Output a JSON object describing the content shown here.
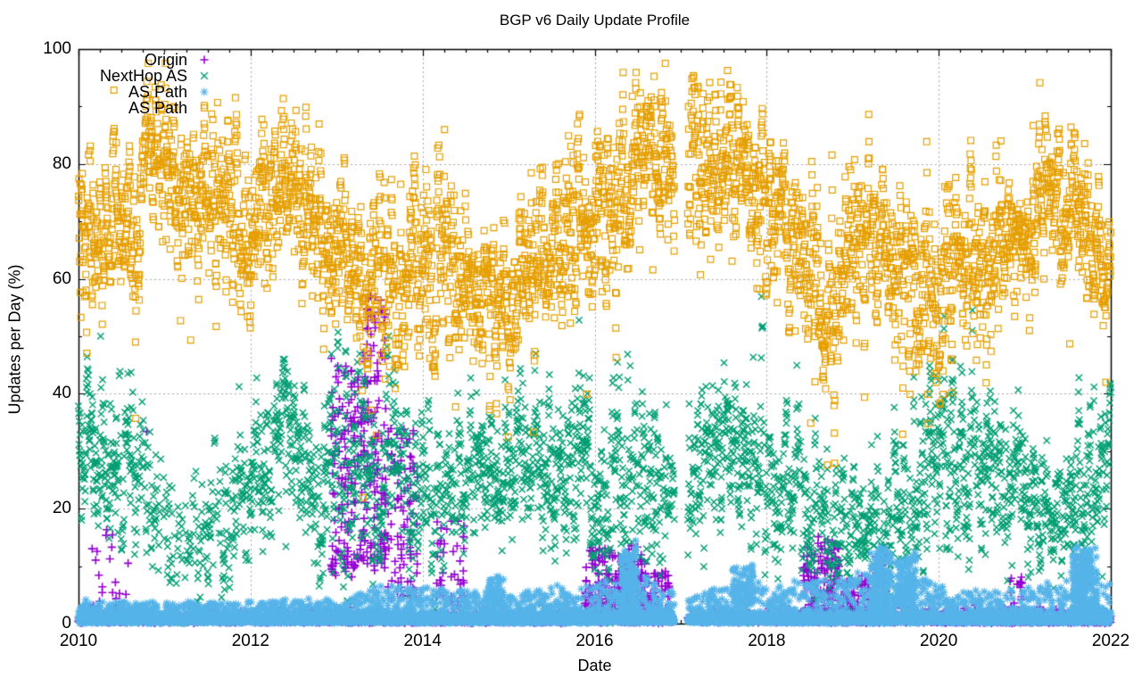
{
  "title": "BGP v6 Daily Update Profile",
  "axes": {
    "x": {
      "label": "Date",
      "min": 2010,
      "max": 2022,
      "ticks": [
        2010,
        2012,
        2014,
        2016,
        2018,
        2020,
        2022
      ],
      "minor_interval": 0.25,
      "grid_at": [
        2012,
        2014,
        2016,
        2018,
        2020
      ]
    },
    "y": {
      "label": "Updates per Day (%)",
      "min": 0,
      "max": 100,
      "ticks": [
        0,
        20,
        40,
        60,
        80,
        100
      ],
      "minor_interval": 10,
      "grid_at": [
        20,
        40,
        60,
        80
      ]
    }
  },
  "legend": {
    "entries": [
      {
        "label": "Origin",
        "marker": "plus",
        "color": "#9400d3"
      },
      {
        "label": "NextHop AS",
        "marker": "cross",
        "color": "#009e73"
      },
      {
        "label": "AS Path",
        "marker": "asterisk",
        "color": "#56b4e9"
      },
      {
        "label": "AS Path",
        "marker": "square",
        "color": "#e69f00"
      }
    ]
  },
  "colors": {
    "grid": "#a8a8a8",
    "border": "#000000",
    "background": "#ffffff"
  },
  "chart_data": {
    "type": "scatter",
    "x_unit": "year",
    "xlim": [
      2010,
      2022
    ],
    "ylim": [
      0,
      100
    ],
    "seed": 1337,
    "gaps": [
      [
        2016.93,
        2017.08
      ]
    ],
    "series": [
      {
        "name": "Origin",
        "marker": "plus",
        "color": "#9400d3",
        "size": 4.6,
        "gen": "floor",
        "floor_keyframes": [
          [
            2010,
            2.0,
            0.5
          ],
          [
            2010.6,
            1.8,
            0.35
          ],
          [
            2012.8,
            1.8,
            0.4
          ],
          [
            2013.8,
            2.0,
            0.5
          ],
          [
            2014.6,
            1.6,
            0.4
          ],
          [
            2015.8,
            1.8,
            0.55
          ],
          [
            2016.9,
            1.6,
            0.45
          ],
          [
            2017.8,
            1.4,
            0.4
          ],
          [
            2018.4,
            1.8,
            0.6
          ],
          [
            2019.5,
            1.6,
            0.6
          ],
          [
            2020.6,
            1.8,
            0.85
          ],
          [
            2020.9,
            2.0,
            1.3
          ],
          [
            2022,
            2.0,
            1.3
          ]
        ],
        "samples": 1,
        "tail_p": 0.05,
        "tail_pow": 2.0,
        "bursts": [
          [
            2010.15,
            2010.6,
            3,
            17,
            22
          ],
          [
            2010.78,
            2010.8,
            33,
            35,
            1
          ],
          [
            2012.93,
            2013.3,
            8,
            46,
            150
          ],
          [
            2013.3,
            2013.58,
            10,
            57,
            150
          ],
          [
            2013.58,
            2013.95,
            4,
            34,
            100
          ],
          [
            2014.15,
            2014.5,
            3,
            18,
            45
          ],
          [
            2015.88,
            2016.6,
            2,
            13,
            210
          ],
          [
            2016.6,
            2016.88,
            1,
            9,
            70
          ],
          [
            2018.42,
            2018.85,
            2,
            14,
            150
          ],
          [
            2018.88,
            2019.2,
            1,
            8,
            80
          ],
          [
            2019.25,
            2019.4,
            1,
            12,
            35
          ],
          [
            2020.82,
            2020.98,
            3,
            9,
            15
          ]
        ]
      },
      {
        "name": "NextHop AS",
        "marker": "cross",
        "color": "#009e73",
        "size": 4.4,
        "gen": "band",
        "band_keyframes": [
          [
            2010,
            35,
            8,
            0.9
          ],
          [
            2010.45,
            32,
            8,
            0.85
          ],
          [
            2010.8,
            24,
            9,
            0.6
          ],
          [
            2011.05,
            15,
            8,
            0.45
          ],
          [
            2011.4,
            14,
            8,
            0.45
          ],
          [
            2011.7,
            20,
            9,
            0.6
          ],
          [
            2012,
            28,
            8,
            0.8
          ],
          [
            2012.4,
            31,
            8,
            0.85
          ],
          [
            2012.8,
            27,
            9,
            0.8
          ],
          [
            2013.1,
            25,
            11,
            0.85
          ],
          [
            2013.5,
            24,
            10,
            0.8
          ],
          [
            2013.9,
            20,
            9,
            0.75
          ],
          [
            2014.3,
            24,
            8,
            0.8
          ],
          [
            2014.8,
            25,
            7,
            0.85
          ],
          [
            2015.3,
            27,
            8,
            0.85
          ],
          [
            2015.8,
            28,
            9,
            0.85
          ],
          [
            2016.2,
            22,
            10,
            0.8
          ],
          [
            2016.6,
            24,
            9,
            0.8
          ],
          [
            2017,
            24,
            8,
            0.8
          ],
          [
            2017.5,
            30,
            8,
            0.9
          ],
          [
            2017.9,
            28,
            8,
            0.85
          ],
          [
            2018.3,
            22,
            8,
            0.8
          ],
          [
            2018.7,
            18,
            7,
            0.75
          ],
          [
            2019.1,
            14,
            6,
            0.7
          ],
          [
            2019.5,
            20,
            8,
            0.8
          ],
          [
            2019.9,
            28,
            10,
            0.9
          ],
          [
            2020.3,
            30,
            9,
            0.9
          ],
          [
            2020.7,
            28,
            8,
            0.85
          ],
          [
            2021.1,
            20,
            7,
            0.8
          ],
          [
            2021.5,
            20,
            6,
            0.8
          ],
          [
            2021.8,
            25,
            7,
            0.8
          ],
          [
            2021.95,
            26,
            6,
            0.8
          ],
          [
            2022,
            41,
            3,
            0.9
          ]
        ],
        "outlier_low": {
          "p": 0.012,
          "dmax": 18
        }
      },
      {
        "name": "AS Path",
        "marker": "asterisk",
        "color": "#56b4e9",
        "size": 4.4,
        "gen": "floor",
        "floor_keyframes": [
          [
            2010,
            3.5,
            1
          ],
          [
            2012,
            3.5,
            1
          ],
          [
            2013,
            4,
            1
          ],
          [
            2013.6,
            7,
            1
          ],
          [
            2014.2,
            6,
            1
          ],
          [
            2015,
            5,
            1
          ],
          [
            2016,
            7,
            1
          ],
          [
            2016.5,
            9,
            1
          ],
          [
            2017,
            4.5,
            1
          ],
          [
            2017.8,
            7,
            1
          ],
          [
            2018.5,
            7,
            1
          ],
          [
            2019.2,
            9,
            1
          ],
          [
            2019.7,
            9,
            1
          ],
          [
            2020.2,
            5,
            1
          ],
          [
            2021,
            6,
            1
          ],
          [
            2021.7,
            9,
            1
          ],
          [
            2022,
            7,
            1
          ]
        ],
        "samples": 2,
        "tail_p": 0.55,
        "tail_pow": 1.7,
        "bursts": [
          [
            2014.75,
            2014.95,
            3,
            8,
            60
          ],
          [
            2016.3,
            2016.5,
            1,
            13,
            160
          ],
          [
            2017.6,
            2017.85,
            4,
            10,
            80
          ],
          [
            2019.2,
            2019.45,
            1,
            13,
            160
          ],
          [
            2019.5,
            2019.75,
            3,
            12,
            120
          ],
          [
            2021.55,
            2021.85,
            2,
            13,
            200
          ]
        ]
      },
      {
        "name": "AS Path",
        "marker": "square",
        "color": "#e69f00",
        "size": 3.4,
        "gen": "band",
        "band_keyframes": [
          [
            2010,
            65,
            8,
            1
          ],
          [
            2010.5,
            69,
            9,
            1
          ],
          [
            2010.85,
            82,
            8,
            1
          ],
          [
            2011.1,
            81,
            8,
            1
          ],
          [
            2011.35,
            77,
            8,
            1
          ],
          [
            2011.6,
            73,
            9,
            1
          ],
          [
            2011.9,
            68,
            9,
            1
          ],
          [
            2012.1,
            70,
            8,
            1
          ],
          [
            2012.35,
            77,
            8,
            1
          ],
          [
            2012.6,
            74,
            9,
            1
          ],
          [
            2012.9,
            69,
            9,
            1
          ],
          [
            2013.15,
            61,
            8,
            1
          ],
          [
            2013.5,
            59,
            9,
            1
          ],
          [
            2013.8,
            62,
            9,
            1
          ],
          [
            2014.05,
            64,
            10,
            1
          ],
          [
            2014.35,
            62,
            10,
            1
          ],
          [
            2014.65,
            57,
            7,
            1
          ],
          [
            2014.95,
            54,
            6,
            1
          ],
          [
            2015.2,
            61,
            7,
            1
          ],
          [
            2015.5,
            66,
            8,
            1
          ],
          [
            2015.8,
            70,
            8,
            1
          ],
          [
            2016.1,
            72,
            8,
            1
          ],
          [
            2016.4,
            78,
            9,
            1
          ],
          [
            2016.65,
            83,
            7,
            1
          ],
          [
            2016.9,
            77,
            8,
            1
          ],
          [
            2017.15,
            79,
            8,
            1
          ],
          [
            2017.4,
            75,
            8,
            1
          ],
          [
            2017.6,
            79,
            8,
            1
          ],
          [
            2017.9,
            73,
            8,
            1
          ],
          [
            2018.2,
            70,
            8,
            1
          ],
          [
            2018.5,
            63,
            9,
            1
          ],
          [
            2018.75,
            57,
            10,
            1
          ],
          [
            2019,
            62,
            9,
            1
          ],
          [
            2019.2,
            70,
            8,
            1
          ],
          [
            2019.45,
            60,
            10,
            1
          ],
          [
            2019.75,
            52,
            10,
            1
          ],
          [
            2019.95,
            58,
            10,
            1
          ],
          [
            2020.2,
            67,
            7,
            1
          ],
          [
            2020.5,
            60,
            9,
            1
          ],
          [
            2020.8,
            66,
            7,
            1
          ],
          [
            2021.05,
            71,
            7,
            1
          ],
          [
            2021.3,
            77,
            8,
            1
          ],
          [
            2021.6,
            73,
            8,
            1
          ],
          [
            2021.9,
            65,
            7,
            1
          ],
          [
            2022,
            61,
            5,
            1
          ]
        ],
        "outlier_low": {
          "p": 0.012,
          "dmax": 22
        },
        "outlier_high": {
          "p": 0.004,
          "dmax": 9
        }
      }
    ]
  }
}
